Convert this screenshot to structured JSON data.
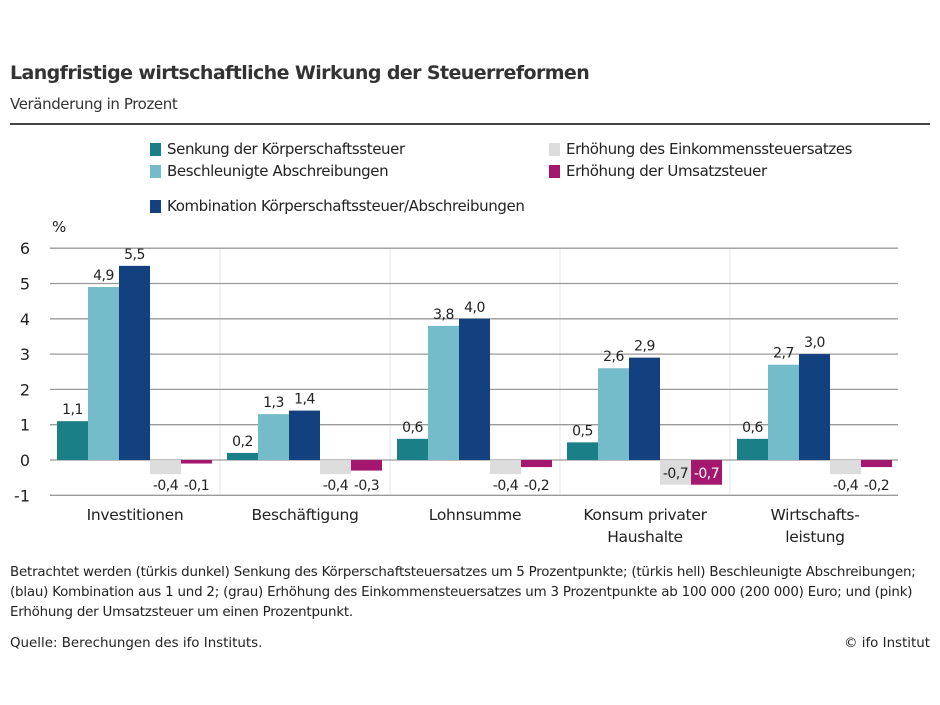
{
  "chart_data": {
    "type": "bar",
    "title": "Langfristige wirtschaftliche Wirkung der Steuerreformen",
    "subtitle": "Veränderung in Prozent",
    "ylabel": "%",
    "ylim": [
      -1,
      6
    ],
    "yticks": [
      6,
      5,
      4,
      3,
      2,
      1,
      0,
      -1
    ],
    "grid": true,
    "legend_position": "top",
    "categories": [
      [
        "Investitionen"
      ],
      [
        "Beschäftigung"
      ],
      [
        "Lohnsumme"
      ],
      [
        "Konsum privater",
        "Haushalte"
      ],
      [
        "Wirtschafts-",
        "leistung"
      ]
    ],
    "series": [
      {
        "name": "Senkung der Körperschaftssteuer",
        "color": "#1a7f86",
        "values": [
          1.1,
          0.2,
          0.6,
          0.5,
          0.6
        ],
        "labels": [
          "1,1",
          "0,2",
          "0,6",
          "0,5",
          "0,6"
        ]
      },
      {
        "name": "Beschleunigte Abschreibungen",
        "color": "#74bcc9",
        "values": [
          4.9,
          1.3,
          3.8,
          2.6,
          2.7
        ],
        "labels": [
          "4,9",
          "1,3",
          "3,8",
          "2,6",
          "2,7"
        ]
      },
      {
        "name": "Kombination Körperschaftssteuer/Abschreibungen",
        "color": "#13407f",
        "values": [
          5.5,
          1.4,
          4.0,
          2.9,
          3.0
        ],
        "labels": [
          "5,5",
          "1,4",
          "4,0",
          "2,9",
          "3,0"
        ]
      },
      {
        "name": "Erhöhung des Einkommenssteuersatzes",
        "color": "#dcdcdc",
        "values": [
          -0.4,
          -0.4,
          -0.4,
          -0.7,
          -0.4
        ],
        "labels": [
          "-0,4",
          "-0,4",
          "-0,4",
          "-0,7",
          "-0,4"
        ]
      },
      {
        "name": "Erhöhung der Umsatzsteuer",
        "color": "#a3176f",
        "values": [
          -0.1,
          -0.3,
          -0.2,
          -0.7,
          -0.2
        ],
        "labels": [
          "-0,1",
          "-0,3",
          "-0,2",
          "-0,7",
          "-0,2"
        ]
      }
    ],
    "note": "Betrachtet werden (türkis dunkel) Senkung des Körperschaftsteuersatzes um 5 Prozentpunkte; (türkis hell) Beschleunigte Abschreibungen; (blau) Kombination aus 1 und 2; (grau) Erhöhung des Einkommensteuersatzes um 3 Prozentpunkte ab 100 000 (200 000) Euro; und (pink) Erhöhung der Umsatzsteuer um einen Prozentpunkt.",
    "source": "Quelle: Berechungen des ifo Instituts.",
    "copyright": "© ifo Institut"
  }
}
